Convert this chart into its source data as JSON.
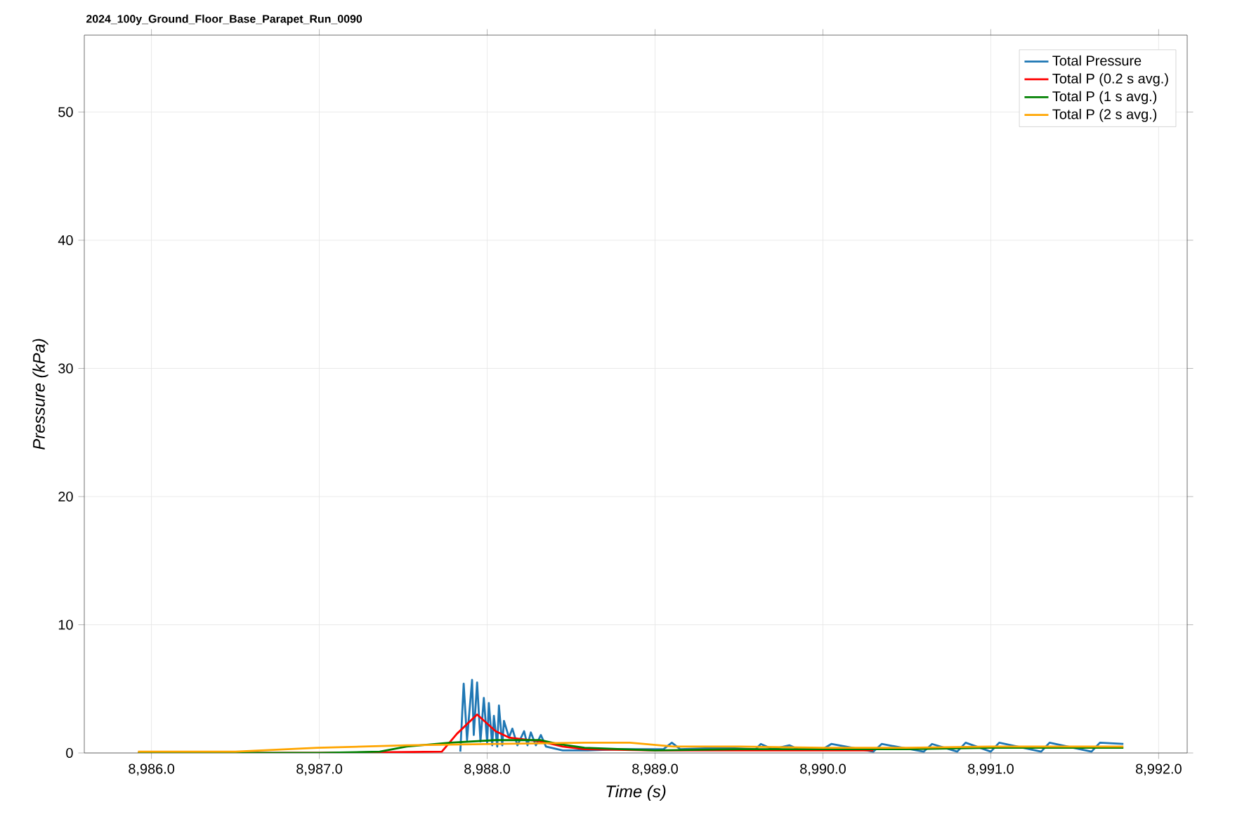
{
  "chart_data": {
    "type": "line",
    "title": "2024_100y_Ground_Floor_Base_Parapet_Run_0090",
    "xlabel": "Time (s)",
    "ylabel": "Pressure (kPa)",
    "xlim": [
      8985.6,
      8992.17
    ],
    "ylim": [
      0,
      56
    ],
    "xticks": [
      {
        "value": 8986,
        "label": "8,986.0"
      },
      {
        "value": 8987,
        "label": "8,987.0"
      },
      {
        "value": 8988,
        "label": "8,988.0"
      },
      {
        "value": 8989,
        "label": "8,989.0"
      },
      {
        "value": 8990,
        "label": "8,990.0"
      },
      {
        "value": 8991,
        "label": "8,991.0"
      },
      {
        "value": 8992,
        "label": "8,992.0"
      }
    ],
    "yticks": [
      0,
      10,
      20,
      30,
      40,
      50
    ],
    "grid": true,
    "legend": "top right",
    "marker": "none",
    "line_style": "solid",
    "series": [
      {
        "name": "Total Pressure",
        "color": "#1f77b4",
        "x": [
          8987.84,
          8987.86,
          8987.88,
          8987.91,
          8987.92,
          8987.94,
          8987.96,
          8987.98,
          8988.0,
          8988.01,
          8988.03,
          8988.04,
          8988.06,
          8988.07,
          8988.09,
          8988.1,
          8988.13,
          8988.15,
          8988.18,
          8988.22,
          8988.24,
          8988.26,
          8988.29,
          8988.32,
          8988.35,
          8988.45,
          8988.6,
          8988.8,
          8989.05,
          8989.1,
          8989.15,
          8989.4,
          8989.6,
          8989.63,
          8989.7,
          8989.8,
          8989.85,
          8990.0,
          8990.05,
          8990.3,
          8990.35,
          8990.6,
          8990.65,
          8990.8,
          8990.85,
          8991.0,
          8991.05,
          8991.3,
          8991.35,
          8991.6,
          8991.65,
          8991.79
        ],
        "values": [
          0.1,
          5.4,
          1.0,
          5.7,
          1.4,
          5.5,
          0.9,
          4.3,
          0.8,
          3.9,
          0.6,
          2.9,
          0.5,
          3.7,
          0.6,
          2.5,
          1.2,
          1.9,
          0.6,
          1.7,
          0.6,
          1.6,
          0.6,
          1.4,
          0.5,
          0.2,
          0.2,
          0.3,
          0.3,
          0.8,
          0.3,
          0.4,
          0.3,
          0.7,
          0.3,
          0.6,
          0.3,
          0.3,
          0.7,
          0.1,
          0.7,
          0.1,
          0.7,
          0.1,
          0.8,
          0.1,
          0.8,
          0.1,
          0.8,
          0.1,
          0.8,
          0.7
        ]
      },
      {
        "name": "Total P (0.2 s avg.)",
        "color": "#ff0000",
        "x": [
          8985.92,
          8987.0,
          8987.73,
          8987.82,
          8987.94,
          8988.05,
          8988.13,
          8988.32,
          8988.45,
          8988.58,
          8989.0,
          8989.5,
          8990.0,
          8990.3
        ],
        "values": [
          0.0,
          0.0,
          0.1,
          1.5,
          3.0,
          1.7,
          1.2,
          0.9,
          0.5,
          0.3,
          0.2,
          0.2,
          0.2,
          0.2
        ]
      },
      {
        "name": "Total P (1 s avg.)",
        "color": "#008000",
        "x": [
          8985.92,
          8987.0,
          8987.36,
          8987.52,
          8987.78,
          8988.05,
          8988.32,
          8988.42,
          8988.58,
          8989.0,
          8989.5,
          8990.0,
          8990.5,
          8991.0,
          8991.79
        ],
        "values": [
          0.0,
          0.0,
          0.1,
          0.5,
          0.8,
          1.0,
          1.0,
          0.7,
          0.4,
          0.2,
          0.3,
          0.3,
          0.3,
          0.4,
          0.4
        ]
      },
      {
        "name": "Total P (2 s avg.)",
        "color": "#ffa500",
        "x": [
          8985.92,
          8986.5,
          8986.99,
          8987.52,
          8988.05,
          8988.58,
          8988.85,
          8989.11,
          8989.5,
          8990.0,
          8990.5,
          8991.0,
          8991.79
        ],
        "values": [
          0.1,
          0.1,
          0.4,
          0.6,
          0.7,
          0.8,
          0.8,
          0.5,
          0.5,
          0.4,
          0.4,
          0.5,
          0.5
        ]
      }
    ]
  }
}
